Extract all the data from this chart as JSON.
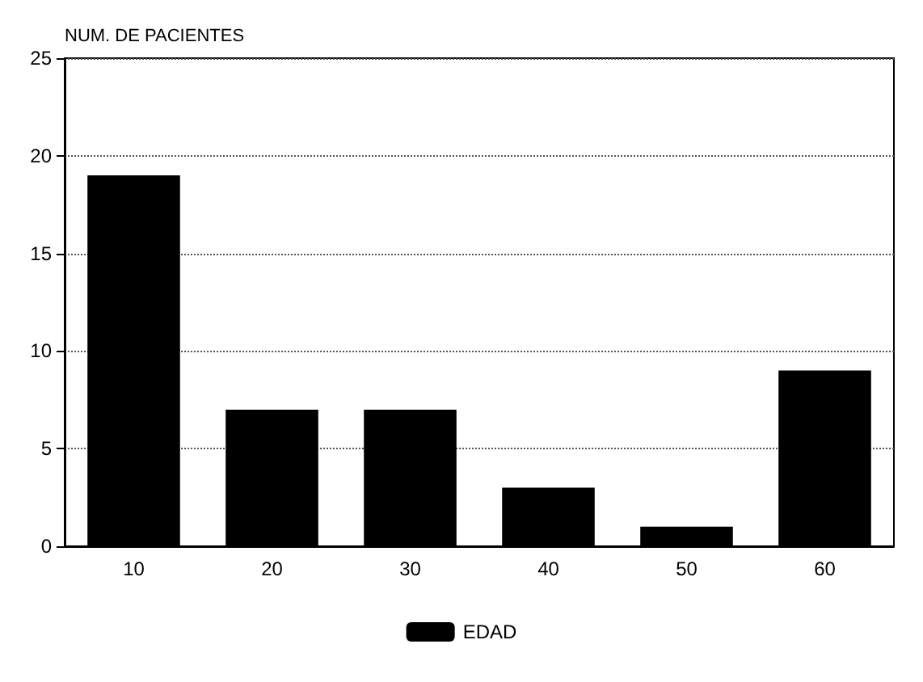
{
  "chart_data": {
    "type": "bar",
    "ylabel": "NUM. DE PACIENTES",
    "categories": [
      "10",
      "20",
      "30",
      "40",
      "50",
      "60"
    ],
    "series": [
      {
        "name": "EDAD",
        "color": "#000000",
        "values": [
          19,
          7,
          7,
          3,
          1,
          9
        ]
      }
    ],
    "ylim": [
      0,
      25
    ],
    "yticks": [
      0,
      5,
      10,
      15,
      20,
      25
    ],
    "grid": "y",
    "line_style": "dotted",
    "legend": "bottom"
  }
}
